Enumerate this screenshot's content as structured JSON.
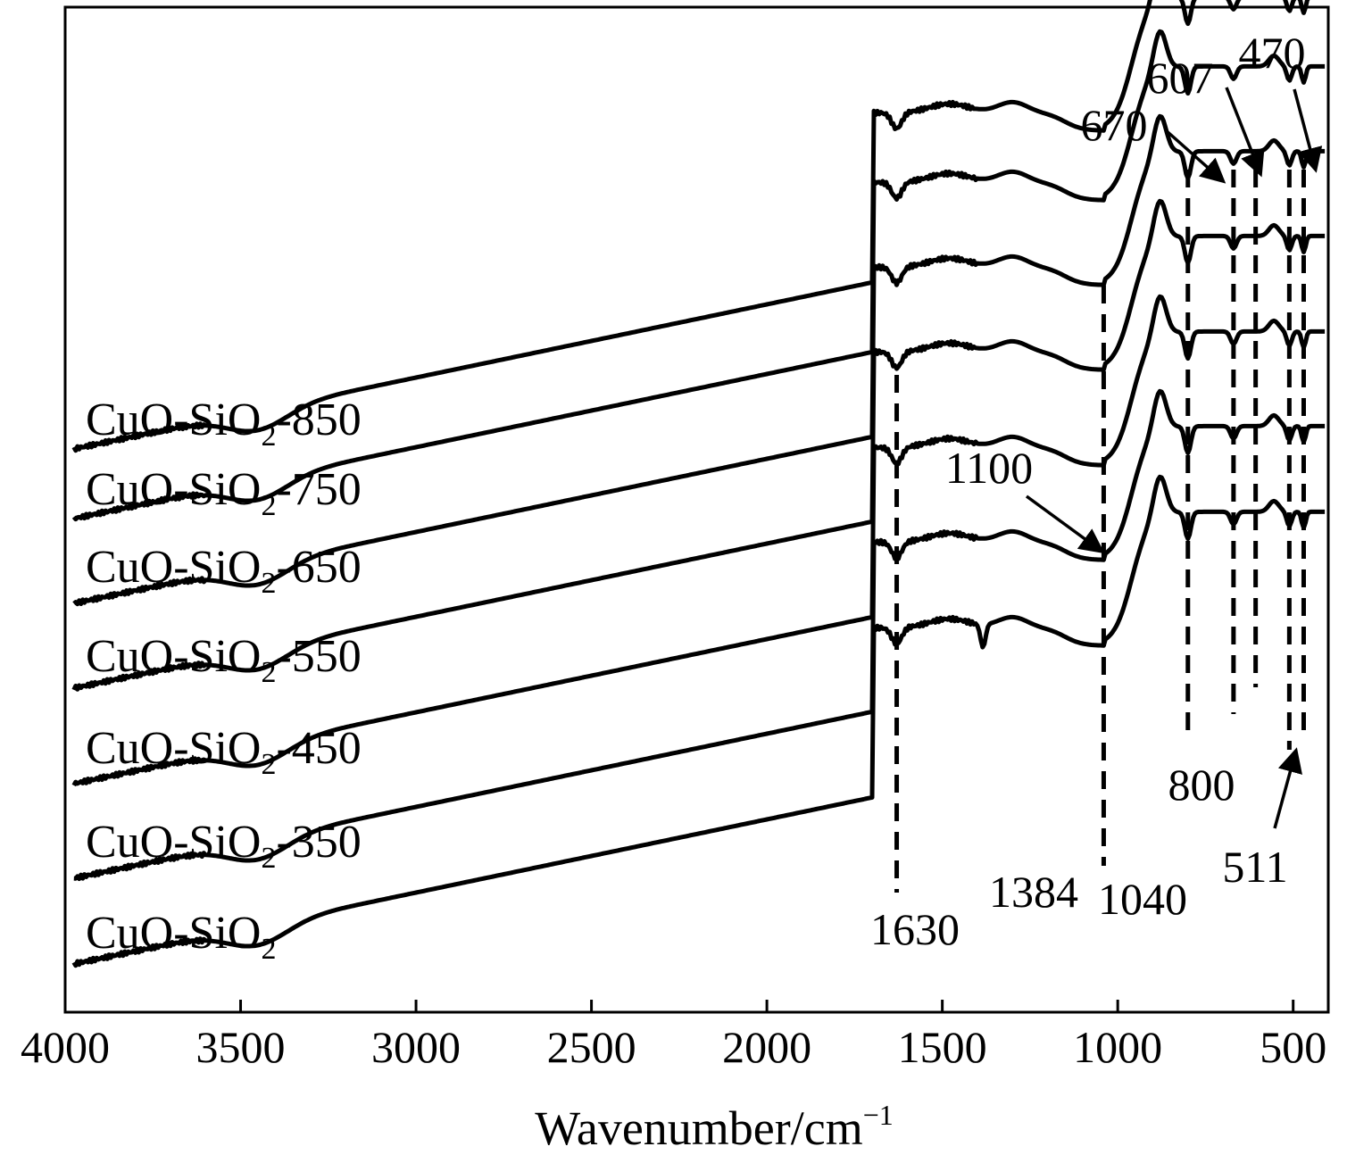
{
  "chart_data": {
    "type": "line",
    "title": "",
    "xlabel": "Wavenumber/cm",
    "xlabel_superscript": "−1",
    "ylabel": "",
    "xlim": [
      4000,
      400
    ],
    "x_inverted": true,
    "grid": false,
    "x_ticks": [
      {
        "value": 4000,
        "label": "4000"
      },
      {
        "value": 3500,
        "label": "3500"
      },
      {
        "value": 3000,
        "label": "3000"
      },
      {
        "value": 2500,
        "label": "2500"
      },
      {
        "value": 2000,
        "label": "2000"
      },
      {
        "value": 1500,
        "label": "1500"
      },
      {
        "value": 1000,
        "label": "1000"
      },
      {
        "value": 500,
        "label": "500"
      }
    ],
    "series": [
      {
        "name": "CuO-SiO2-850",
        "label_parts": [
          "CuO-SiO",
          "2",
          "-850"
        ],
        "offset": 6
      },
      {
        "name": "CuO-SiO2-750",
        "label_parts": [
          "CuO-SiO",
          "2",
          "-750"
        ],
        "offset": 5
      },
      {
        "name": "CuO-SiO2-650",
        "label_parts": [
          "CuO-SiO",
          "2",
          "-650"
        ],
        "offset": 4
      },
      {
        "name": "CuO-SiO2-550",
        "label_parts": [
          "CuO-SiO",
          "2",
          "-550"
        ],
        "offset": 3
      },
      {
        "name": "CuO-SiO2-450",
        "label_parts": [
          "CuO-SiO",
          "2",
          "-450"
        ],
        "offset": 2
      },
      {
        "name": "CuO-SiO2-350",
        "label_parts": [
          "CuO-SiO",
          "2",
          "-350"
        ],
        "offset": 1
      },
      {
        "name": "CuO-SiO2",
        "label_parts": [
          "CuO-SiO",
          "2",
          ""
        ],
        "offset": 0
      }
    ],
    "reference_lines": [
      1630,
      1040,
      800,
      670,
      607,
      511,
      470
    ],
    "annotations": [
      {
        "text": "1630",
        "x": 1630
      },
      {
        "text": "1384",
        "x": 1384
      },
      {
        "text": "1040",
        "x": 1040
      },
      {
        "text": "1100",
        "x": 1100,
        "arrow": true
      },
      {
        "text": "800",
        "x": 800
      },
      {
        "text": "511",
        "x": 511,
        "arrow": true
      },
      {
        "text": "670",
        "x": 670,
        "arrow": true
      },
      {
        "text": "607",
        "x": 607,
        "arrow": true
      },
      {
        "text": "470",
        "x": 470,
        "arrow": true
      }
    ]
  }
}
